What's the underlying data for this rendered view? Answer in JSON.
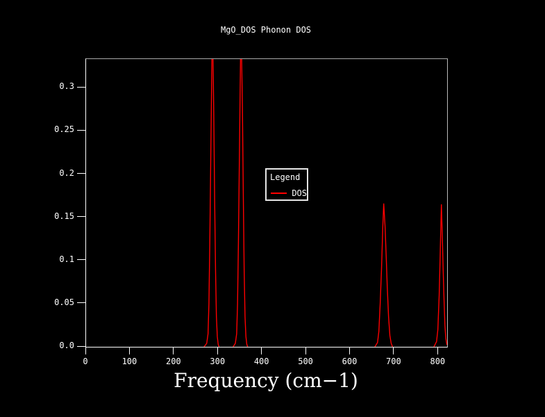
{
  "title": "MgO_DOS Phonon DOS",
  "xlabel": "Frequency (cm−1)",
  "legend": {
    "title": "Legend",
    "entries": [
      {
        "label": "DOS",
        "color": "#ff0000"
      }
    ]
  },
  "colors": {
    "background": "#000000",
    "curve": "#ff0000",
    "frame": "#b9b9b9",
    "text": "#ffffff"
  },
  "chart_data": {
    "type": "line",
    "title": "MgO_DOS Phonon DOS",
    "xlabel": "Frequency (cm−1)",
    "ylabel": "",
    "grid": false,
    "legend_position": "center",
    "xlim": [
      0,
      820
    ],
    "ylim": [
      0,
      0.3333
    ],
    "x_ticks": [
      {
        "value": 0,
        "label": "0"
      },
      {
        "value": 100,
        "label": "100"
      },
      {
        "value": 200,
        "label": "200"
      },
      {
        "value": 300,
        "label": "300"
      },
      {
        "value": 400,
        "label": "400"
      },
      {
        "value": 500,
        "label": "500"
      },
      {
        "value": 600,
        "label": "600"
      },
      {
        "value": 700,
        "label": "700"
      },
      {
        "value": 800,
        "label": "800"
      }
    ],
    "y_ticks": [
      {
        "value": 0,
        "label": "0.0"
      },
      {
        "value": 0.05,
        "label": "0.05"
      },
      {
        "value": 0.1,
        "label": "0.1"
      },
      {
        "value": 0.15,
        "label": "0.15"
      },
      {
        "value": 0.2,
        "label": "0.2"
      },
      {
        "value": 0.25,
        "label": "0.25"
      },
      {
        "value": 0.3,
        "label": "0.3"
      }
    ],
    "series": [
      {
        "name": "DOS",
        "color": "#ff0000",
        "peaks": [
          {
            "center": 287,
            "height": 0.345,
            "clipped_at": 0.3333
          },
          {
            "center": 353,
            "height": 0.345,
            "clipped_at": 0.3333
          },
          {
            "center": 676,
            "height": 0.166,
            "clipped_at": null
          },
          {
            "center": 807,
            "height": 0.165,
            "clipped_at": null
          }
        ],
        "points": [
          [
            0,
            0
          ],
          [
            268,
            0
          ],
          [
            274,
            0.004
          ],
          [
            277,
            0.015
          ],
          [
            279,
            0.05
          ],
          [
            281,
            0.12
          ],
          [
            283,
            0.21
          ],
          [
            285,
            0.3
          ],
          [
            286,
            0.345
          ],
          [
            288,
            0.345
          ],
          [
            290,
            0.27
          ],
          [
            292,
            0.17
          ],
          [
            294,
            0.09
          ],
          [
            296,
            0.035
          ],
          [
            298,
            0.012
          ],
          [
            300,
            0.003
          ],
          [
            302,
            0
          ],
          [
            334,
            0
          ],
          [
            339,
            0.004
          ],
          [
            342,
            0.015
          ],
          [
            344,
            0.05
          ],
          [
            346,
            0.12
          ],
          [
            348,
            0.21
          ],
          [
            350,
            0.3
          ],
          [
            351,
            0.345
          ],
          [
            353,
            0.345
          ],
          [
            355,
            0.28
          ],
          [
            357,
            0.18
          ],
          [
            359,
            0.09
          ],
          [
            361,
            0.035
          ],
          [
            363,
            0.012
          ],
          [
            365,
            0.003
          ],
          [
            367,
            0
          ],
          [
            656,
            0
          ],
          [
            662,
            0.005
          ],
          [
            665,
            0.018
          ],
          [
            668,
            0.05
          ],
          [
            671,
            0.09
          ],
          [
            674,
            0.14
          ],
          [
            676,
            0.166
          ],
          [
            679,
            0.14
          ],
          [
            682,
            0.1
          ],
          [
            684,
            0.07
          ],
          [
            687,
            0.035
          ],
          [
            690,
            0.013
          ],
          [
            693,
            0.004
          ],
          [
            696,
            0
          ],
          [
            790,
            0
          ],
          [
            796,
            0.006
          ],
          [
            799,
            0.02
          ],
          [
            802,
            0.06
          ],
          [
            804,
            0.1
          ],
          [
            806,
            0.145
          ],
          [
            807,
            0.165
          ],
          [
            809,
            0.13
          ],
          [
            811,
            0.09
          ],
          [
            813,
            0.055
          ],
          [
            815,
            0.025
          ],
          [
            817,
            0.01
          ],
          [
            819,
            0.004
          ],
          [
            820,
            0.002
          ]
        ]
      }
    ]
  }
}
